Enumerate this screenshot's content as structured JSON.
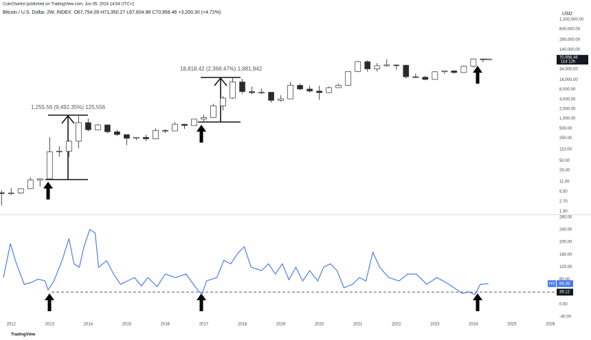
{
  "header": {
    "publisher": "CoinChartist published on TradingView.com, Jun 05, 2024 14:54 UTC+2",
    "logo": "TradingView"
  },
  "chart_data": [
    {
      "type": "candlestick",
      "title": "Bitcoin / U.S. Dollar, 2W, INDEX",
      "ohlc_summary": "O67,754.09 H71,350.27 L67,604.98 C70,958.46 +3,200.30 (+4.72%)",
      "currency": "USD",
      "log_scale": true,
      "up_color": "#ffffff",
      "down_color": "#2a2a2a",
      "wick_color": "#444444",
      "xlim": [
        2011.71,
        2026.09
      ],
      "ylim": [
        1,
        2000000
      ],
      "yticks": [
        {
          "value": 1200000,
          "label": "1,200,000.00"
        },
        {
          "value": 600000,
          "label": "600,000.00"
        },
        {
          "value": 280000,
          "label": "280,000.00"
        },
        {
          "value": 140000,
          "label": "140,000.00"
        },
        {
          "value": 34000,
          "label": "34,000.00"
        },
        {
          "value": 16000,
          "label": "16,000.00"
        },
        {
          "value": 8000,
          "label": "8,000.00"
        },
        {
          "value": 4000,
          "label": "4,000.00"
        },
        {
          "value": 2000,
          "label": "2,000.00"
        },
        {
          "value": 1000,
          "label": "1,000.00"
        },
        {
          "value": 500,
          "label": "500.00"
        },
        {
          "value": 250,
          "label": "250.00"
        },
        {
          "value": 110,
          "label": "110.00"
        },
        {
          "value": 50,
          "label": "50.00"
        },
        {
          "value": 25,
          "label": "25.00"
        },
        {
          "value": 11,
          "label": "11.00"
        },
        {
          "value": 5.5,
          "label": "5.50"
        },
        {
          "value": 2.7,
          "label": "2.70"
        },
        {
          "value": 1.3,
          "label": "1.30"
        }
      ],
      "last_price": {
        "value": 70958.46,
        "label": "70,958.46"
      },
      "countdown": "11d 12h",
      "annotations": [
        "1,255.56 (9,492.35%) 125,556",
        "18,818.42 (2,368.47%) 1,881,842"
      ],
      "x": [
        2011.75,
        2012.0,
        2012.25,
        2012.5,
        2012.75,
        2013.0,
        2013.25,
        2013.5,
        2013.75,
        2014.0,
        2014.25,
        2014.5,
        2014.75,
        2015.0,
        2015.25,
        2015.5,
        2015.75,
        2016.0,
        2016.25,
        2016.5,
        2016.75,
        2017.0,
        2017.25,
        2017.5,
        2017.75,
        2018.0,
        2018.25,
        2018.5,
        2018.75,
        2019.0,
        2019.25,
        2019.5,
        2019.75,
        2020.0,
        2020.25,
        2020.5,
        2020.75,
        2021.0,
        2021.25,
        2021.5,
        2021.75,
        2022.0,
        2022.25,
        2022.5,
        2022.75,
        2023.0,
        2023.25,
        2023.5,
        2023.75,
        2024.0,
        2024.25,
        2024.4
      ],
      "open": [
        5.0,
        4.7,
        4.9,
        6.7,
        12.4,
        13.5,
        93,
        97,
        200,
        750,
        450,
        640,
        390,
        320,
        245,
        263,
        236,
        430,
        415,
        670,
        610,
        965,
        1080,
        2500,
        4350,
        13800,
        6900,
        6400,
        6600,
        3700,
        4100,
        10800,
        8300,
        7200,
        6400,
        9150,
        10800,
        29000,
        58800,
        35000,
        43800,
        46300,
        45500,
        19900,
        19400,
        16500,
        28500,
        30500,
        27000,
        42300,
        71300,
        67754.09
      ],
      "high": [
        6.0,
        7.0,
        6.7,
        15,
        14,
        266,
        140,
        210,
        1200,
        1000,
        680,
        650,
        450,
        320,
        265,
        315,
        500,
        465,
        780,
        680,
        980,
        1300,
        2900,
        5000,
        19800,
        17200,
        9900,
        8500,
        6800,
        5300,
        13800,
        12300,
        10500,
        10500,
        10000,
        12400,
        29300,
        61800,
        64800,
        52900,
        69000,
        48200,
        47400,
        25200,
        21400,
        29200,
        31400,
        31800,
        44700,
        73800,
        72700,
        71350.27
      ],
      "low": [
        2.0,
        4.2,
        4.6,
        6.5,
        7.8,
        13,
        65,
        65,
        120,
        400,
        450,
        350,
        290,
        150,
        215,
        200,
        230,
        360,
        415,
        480,
        600,
        750,
        1080,
        1800,
        4100,
        5900,
        5700,
        5800,
        3150,
        3350,
        4100,
        7700,
        6500,
        3850,
        6200,
        8900,
        10400,
        28000,
        28800,
        29300,
        42000,
        32900,
        17600,
        18200,
        15500,
        16500,
        24800,
        24900,
        26500,
        38500,
        56500,
        67604.98
      ],
      "close": [
        4.7,
        4.9,
        6.7,
        12.4,
        13.5,
        93,
        97,
        200,
        750,
        450,
        640,
        390,
        320,
        245,
        263,
        236,
        430,
        415,
        670,
        610,
        965,
        1080,
        2500,
        4350,
        13800,
        6900,
        6400,
        6600,
        3700,
        4100,
        10800,
        8300,
        7200,
        6400,
        9150,
        10800,
        29000,
        58800,
        35000,
        43800,
        46300,
        45500,
        19900,
        19400,
        16500,
        28500,
        30500,
        27000,
        42300,
        71300,
        67750,
        70958.46
      ]
    },
    {
      "type": "line",
      "xlim": [
        2011.71,
        2026.09
      ],
      "ylim": [
        -53,
        286
      ],
      "xticks": [
        2012,
        2013,
        2014,
        2015,
        2016,
        2017,
        2018,
        2019,
        2020,
        2021,
        2022,
        2023,
        2024,
        2025,
        2026
      ],
      "yticks": [
        {
          "value": 280,
          "label": "280.00"
        },
        {
          "value": 240,
          "label": "240.00"
        },
        {
          "value": 200,
          "label": "200.00"
        },
        {
          "value": 160,
          "label": "160.00"
        },
        {
          "value": 120,
          "label": "120.00"
        },
        {
          "value": 80,
          "label": "80.00"
        },
        {
          "value": 0,
          "label": "0.00"
        },
        {
          "value": -40,
          "label": "-40.00"
        }
      ],
      "current_value": 66.38,
      "reference_level": 39.12,
      "x": [
        2011.8,
        2011.98,
        2012.11,
        2012.34,
        2012.52,
        2012.7,
        2012.88,
        2012.96,
        2013.11,
        2013.32,
        2013.5,
        2013.63,
        2013.77,
        2013.89,
        2014.04,
        2014.18,
        2014.27,
        2014.48,
        2014.66,
        2014.84,
        2015.02,
        2015.2,
        2015.38,
        2015.55,
        2015.79,
        2016.0,
        2016.27,
        2016.54,
        2016.8,
        2016.95,
        2017.07,
        2017.34,
        2017.52,
        2017.7,
        2017.88,
        2018.05,
        2018.23,
        2018.5,
        2018.68,
        2018.86,
        2019.04,
        2019.21,
        2019.39,
        2019.57,
        2019.75,
        2019.96,
        2020.11,
        2020.29,
        2020.46,
        2020.64,
        2020.86,
        2021.04,
        2021.21,
        2021.39,
        2021.57,
        2021.8,
        2022.07,
        2022.29,
        2022.52,
        2022.79,
        2023.05,
        2023.29,
        2023.5,
        2023.71,
        2023.89,
        2024.04,
        2024.18,
        2024.39
      ],
      "series": [
        {
          "name": "HV",
          "color": "#4a7cf0",
          "values": [
            86,
            195,
            140,
            64,
            70,
            81,
            75,
            46,
            75,
            140,
            211,
            130,
            119,
            185,
            240,
            229,
            119,
            140,
            97,
            64,
            75,
            86,
            59,
            86,
            57,
            97,
            86,
            97,
            53,
            31,
            75,
            86,
            141,
            130,
            163,
            185,
            119,
            108,
            130,
            97,
            130,
            79,
            119,
            75,
            108,
            75,
            119,
            130,
            108,
            53,
            64,
            86,
            75,
            167,
            119,
            86,
            75,
            97,
            97,
            64,
            86,
            70,
            53,
            35,
            40,
            31,
            64,
            66.38
          ]
        }
      ]
    }
  ]
}
